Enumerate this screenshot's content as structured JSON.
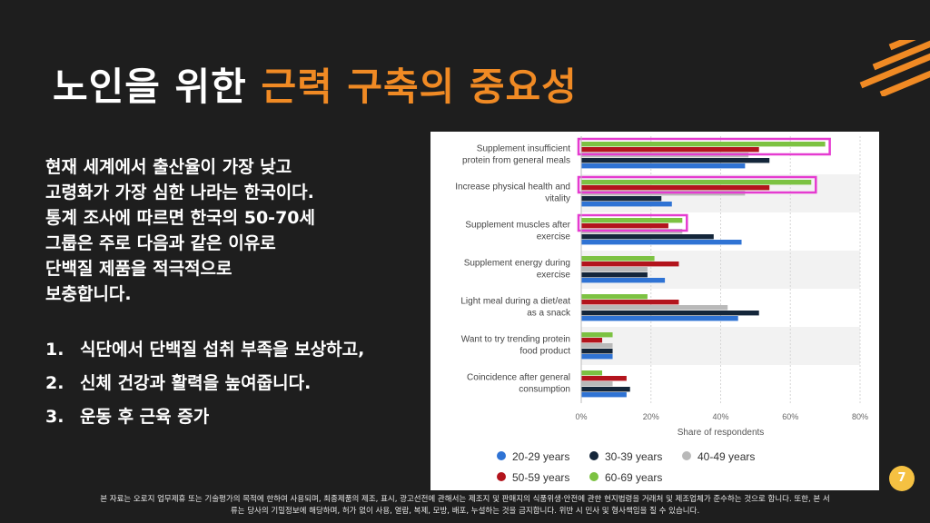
{
  "slide": {
    "title_main": "노인을 위한 ",
    "title_accent": "근력 구축의 중요성",
    "intro": "현재 세계에서 출산율이 가장 낮고\n고령화가 가장 심한 나라는 한국이다.\n통계 조사에 따르면 한국의 50-70세\n그룹은 주로 다음과 같은 이유로\n단백질 제품을 적극적으로\n보충합니다.",
    "reasons": [
      {
        "num": "1.",
        "text": "식단에서 단백질 섭취 부족을 보상하고,"
      },
      {
        "num": "2.",
        "text": "신체 건강과 활력을 높여줍니다."
      },
      {
        "num": "3.",
        "text": "운동 후 근육 증가"
      }
    ],
    "page_number": "7",
    "footer_line1": "본 자료는 오로지 업무제휴 또는 기술평가의 목적에 한하여 사용되며, 최종제품의 제조, 표시, 광고선전에 관해서는 제조지 및 판매지의 식품위생·안전에 관한 현지법령을 거래처 및 제조업체가 준수하는 것으로 합니다. 또한, 본 서",
    "footer_line2": "류는 당사의 기밀정보에 해당하며, 허가 없이 사용, 열람, 복제, 모방, 배포, 누설하는 것을 금지합니다. 위반 시 민사 및 형사책임을 질 수 있습니다.",
    "accent_color": "#f08a24",
    "highlight_color": "#e53bd0"
  },
  "chart_data": {
    "type": "bar",
    "orientation": "horizontal",
    "categories": [
      [
        "Supplement insufficient",
        "protein from general meals"
      ],
      [
        "Increase physical health and",
        "vitality"
      ],
      [
        "Supplement muscles after",
        "exercise"
      ],
      [
        "Supplement energy during",
        "exercise"
      ],
      [
        "Light meal during a diet/eat",
        "as a snack"
      ],
      [
        "Want to try trending protein",
        "food product"
      ],
      [
        "Coincidence after general",
        "consumption"
      ]
    ],
    "series": [
      {
        "name": "60-69 years",
        "color": "#7cc242",
        "values": [
          70,
          66,
          29,
          21,
          19,
          9,
          6
        ]
      },
      {
        "name": "50-59 years",
        "color": "#b3141d",
        "values": [
          51,
          54,
          25,
          28,
          28,
          6,
          13
        ]
      },
      {
        "name": "40-49 years",
        "color": "#b9b9b9",
        "values": [
          48,
          47,
          29,
          19,
          42,
          9,
          9
        ]
      },
      {
        "name": "30-39 years",
        "color": "#14263a",
        "values": [
          54,
          23,
          38,
          19,
          51,
          9,
          14
        ]
      },
      {
        "name": "20-29 years",
        "color": "#2f73d4",
        "values": [
          47,
          26,
          46,
          24,
          45,
          9,
          13
        ]
      }
    ],
    "legend_order": [
      "20-29 years",
      "30-39 years",
      "40-49 years",
      "50-59 years",
      "60-69 years"
    ],
    "xlabel": "Share of respondents",
    "xlim": [
      0,
      80
    ],
    "xticks": [
      "0%",
      "20%",
      "40%",
      "60%",
      "80%"
    ],
    "highlighted_categories": [
      0,
      1,
      2
    ],
    "grid": true,
    "legend_position": "bottom"
  }
}
